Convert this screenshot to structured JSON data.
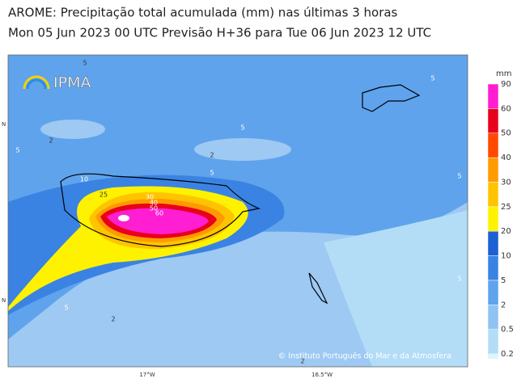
{
  "header": {
    "title": "AROME: Precipitação total acumulada (mm) nas últimas 3 horas",
    "subtitle": "Mon 05 Jun 2023 00 UTC Previsão H+36 para Tue 06 Jun 2023 12 UTC"
  },
  "logo": "IPMA",
  "credit": "© Instituto Português do Mar e da Atmosfera",
  "axes": {
    "x_labels": [
      "17°W",
      "16.5°W"
    ],
    "y_labels": [
      "N",
      "N"
    ]
  },
  "colorbar": {
    "unit": "mm",
    "levels": [
      0.2,
      0.5,
      2,
      5,
      10,
      20,
      25,
      30,
      40,
      50,
      60,
      90
    ],
    "colors": [
      "#dcf7fa",
      "#b3dcf7",
      "#8fc3f2",
      "#5fa3ec",
      "#3a83e3",
      "#1d5fd4",
      "#fff200",
      "#ffc400",
      "#ff9a00",
      "#ff4a00",
      "#e8001c",
      "#ff1ed2"
    ]
  },
  "contour_labels": [
    "5",
    "5",
    "5",
    "2",
    "5",
    "2",
    "5",
    "10",
    "5",
    "25",
    "30",
    "40",
    "50",
    "60",
    "5",
    "5",
    "2",
    "2"
  ]
}
